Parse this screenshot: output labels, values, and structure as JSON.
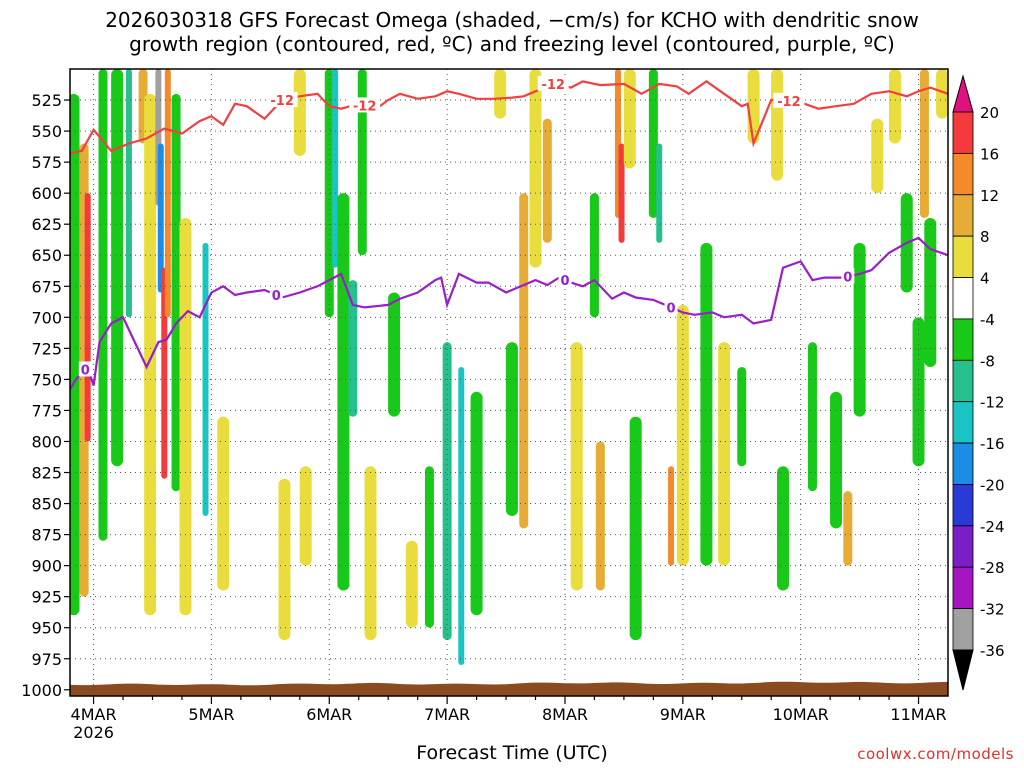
{
  "title_line1": "2026030318 GFS Forecast Omega (shaded, −cm/s) for KCHO with dendritic snow",
  "title_line2": "growth region (contoured, red, ºC) and freezing level (contoured, purple, ºC)",
  "credit": "coolwx.com/models",
  "chart_data": {
    "type": "heatmap",
    "title": "2026030318 GFS Forecast Omega (shaded, −cm/s) for KCHO with dendritic snow growth region (contoured, red, ºC) and freezing level (contoured, purple, ºC)",
    "xlabel": "Forecast Time (UTC)",
    "ylabel": "",
    "x_ticks": [
      "4MAR",
      "5MAR",
      "6MAR",
      "7MAR",
      "8MAR",
      "9MAR",
      "10MAR",
      "11MAR"
    ],
    "x_year_label": "2026",
    "y_ticks": [
      525,
      550,
      575,
      600,
      625,
      650,
      675,
      700,
      725,
      750,
      775,
      800,
      825,
      850,
      875,
      900,
      925,
      950,
      975,
      1000
    ],
    "y_range_hPa": [
      500,
      1005
    ],
    "x_range_days": [
      3.8,
      11.25
    ],
    "grid": true,
    "colorbar": {
      "ticks": [
        20,
        16,
        12,
        8,
        4,
        -4,
        -8,
        -12,
        -16,
        -20,
        -24,
        -28,
        -32,
        -36
      ],
      "bins": [
        {
          "range": "16 to 20",
          "color": "#f43a3a"
        },
        {
          "range": "12 to 16",
          "color": "#f58a2a"
        },
        {
          "range": "8 to 12",
          "color": "#e6ac36"
        },
        {
          "range": "4 to 8",
          "color": "#e8dd3c"
        },
        {
          "range": "-4 to 4",
          "color": "#ffffff"
        },
        {
          "range": "-8 to -4",
          "color": "#19c919"
        },
        {
          "range": "-12 to -8",
          "color": "#26c08e"
        },
        {
          "range": "-16 to -12",
          "color": "#1ac4c4"
        },
        {
          "range": "-20 to -16",
          "color": "#1c8de6"
        },
        {
          "range": "-24 to -20",
          "color": "#2a3ad6"
        },
        {
          "range": "-28 to -24",
          "color": "#7a1fc8"
        },
        {
          "range": "-32 to -28",
          "color": "#a516c0"
        },
        {
          "range": "-36 to -32",
          "color": "#a0a0a0"
        }
      ],
      "top_arrow_color": "#e0107c",
      "bottom_arrow_color": "#000000"
    },
    "shaded_features": [
      {
        "day": 3.83,
        "p_top": 520,
        "p_bot": 940,
        "value": -6
      },
      {
        "day": 3.92,
        "p_top": 560,
        "p_bot": 925,
        "value": 10
      },
      {
        "day": 3.95,
        "p_top": 600,
        "p_bot": 800,
        "value": 17
      },
      {
        "day": 4.08,
        "p_top": 500,
        "p_bot": 880,
        "value": -8
      },
      {
        "day": 4.2,
        "p_top": 500,
        "p_bot": 820,
        "value": -7
      },
      {
        "day": 4.3,
        "p_top": 500,
        "p_bot": 700,
        "value": -12
      },
      {
        "day": 4.42,
        "p_top": 500,
        "p_bot": 560,
        "value": 8
      },
      {
        "day": 4.48,
        "p_top": 520,
        "p_bot": 940,
        "value": 6
      },
      {
        "day": 4.55,
        "p_top": 500,
        "p_bot": 610,
        "value": -36
      },
      {
        "day": 4.57,
        "p_top": 560,
        "p_bot": 680,
        "value": -20
      },
      {
        "day": 4.6,
        "p_top": 660,
        "p_bot": 830,
        "value": 18
      },
      {
        "day": 4.63,
        "p_top": 500,
        "p_bot": 700,
        "value": 14
      },
      {
        "day": 4.7,
        "p_top": 520,
        "p_bot": 840,
        "value": -8
      },
      {
        "day": 4.78,
        "p_top": 620,
        "p_bot": 940,
        "value": 6
      },
      {
        "day": 4.95,
        "p_top": 640,
        "p_bot": 860,
        "value": -14
      },
      {
        "day": 5.1,
        "p_top": 780,
        "p_bot": 920,
        "value": 6
      },
      {
        "day": 5.62,
        "p_top": 830,
        "p_bot": 960,
        "value": 6
      },
      {
        "day": 5.75,
        "p_top": 500,
        "p_bot": 570,
        "value": 6
      },
      {
        "day": 5.8,
        "p_top": 820,
        "p_bot": 900,
        "value": 7
      },
      {
        "day": 6.0,
        "p_top": 500,
        "p_bot": 700,
        "value": -8
      },
      {
        "day": 6.05,
        "p_top": 500,
        "p_bot": 660,
        "value": -14
      },
      {
        "day": 6.12,
        "p_top": 600,
        "p_bot": 920,
        "value": -7
      },
      {
        "day": 6.2,
        "p_top": 670,
        "p_bot": 780,
        "value": -10
      },
      {
        "day": 6.28,
        "p_top": 500,
        "p_bot": 650,
        "value": -8
      },
      {
        "day": 6.35,
        "p_top": 820,
        "p_bot": 960,
        "value": 6
      },
      {
        "day": 6.55,
        "p_top": 680,
        "p_bot": 780,
        "value": -7
      },
      {
        "day": 6.7,
        "p_top": 880,
        "p_bot": 950,
        "value": 6
      },
      {
        "day": 6.85,
        "p_top": 820,
        "p_bot": 950,
        "value": -8
      },
      {
        "day": 7.0,
        "p_top": 720,
        "p_bot": 960,
        "value": -10
      },
      {
        "day": 7.12,
        "p_top": 740,
        "p_bot": 980,
        "value": -14
      },
      {
        "day": 7.25,
        "p_top": 760,
        "p_bot": 940,
        "value": -7
      },
      {
        "day": 7.45,
        "p_top": 500,
        "p_bot": 540,
        "value": 6
      },
      {
        "day": 7.55,
        "p_top": 720,
        "p_bot": 860,
        "value": -7
      },
      {
        "day": 7.65,
        "p_top": 600,
        "p_bot": 870,
        "value": 8
      },
      {
        "day": 7.75,
        "p_top": 500,
        "p_bot": 660,
        "value": 6
      },
      {
        "day": 7.85,
        "p_top": 540,
        "p_bot": 640,
        "value": 8
      },
      {
        "day": 8.1,
        "p_top": 720,
        "p_bot": 920,
        "value": 6
      },
      {
        "day": 8.25,
        "p_top": 600,
        "p_bot": 700,
        "value": -8
      },
      {
        "day": 8.3,
        "p_top": 800,
        "p_bot": 920,
        "value": 9
      },
      {
        "day": 8.45,
        "p_top": 500,
        "p_bot": 620,
        "value": 12
      },
      {
        "day": 8.48,
        "p_top": 560,
        "p_bot": 640,
        "value": 17
      },
      {
        "day": 8.55,
        "p_top": 500,
        "p_bot": 580,
        "value": 6
      },
      {
        "day": 8.6,
        "p_top": 780,
        "p_bot": 960,
        "value": -7
      },
      {
        "day": 8.75,
        "p_top": 500,
        "p_bot": 620,
        "value": -8
      },
      {
        "day": 8.8,
        "p_top": 560,
        "p_bot": 640,
        "value": -12
      },
      {
        "day": 8.9,
        "p_top": 820,
        "p_bot": 900,
        "value": 12
      },
      {
        "day": 9.0,
        "p_top": 690,
        "p_bot": 900,
        "value": 5
      },
      {
        "day": 9.2,
        "p_top": 640,
        "p_bot": 900,
        "value": -7
      },
      {
        "day": 9.35,
        "p_top": 720,
        "p_bot": 900,
        "value": 6
      },
      {
        "day": 9.5,
        "p_top": 740,
        "p_bot": 820,
        "value": -8
      },
      {
        "day": 9.6,
        "p_top": 500,
        "p_bot": 560,
        "value": 6
      },
      {
        "day": 9.8,
        "p_top": 500,
        "p_bot": 590,
        "value": 6
      },
      {
        "day": 9.85,
        "p_top": 820,
        "p_bot": 920,
        "value": -7
      },
      {
        "day": 10.1,
        "p_top": 720,
        "p_bot": 840,
        "value": -8
      },
      {
        "day": 10.3,
        "p_top": 760,
        "p_bot": 870,
        "value": -7
      },
      {
        "day": 10.4,
        "p_top": 840,
        "p_bot": 900,
        "value": 10
      },
      {
        "day": 10.5,
        "p_top": 640,
        "p_bot": 780,
        "value": -7
      },
      {
        "day": 10.65,
        "p_top": 540,
        "p_bot": 600,
        "value": 6
      },
      {
        "day": 10.8,
        "p_top": 500,
        "p_bot": 560,
        "value": 6
      },
      {
        "day": 10.9,
        "p_top": 600,
        "p_bot": 680,
        "value": -7
      },
      {
        "day": 11.0,
        "p_top": 700,
        "p_bot": 820,
        "value": -7
      },
      {
        "day": 11.05,
        "p_top": 500,
        "p_bot": 620,
        "value": 9
      },
      {
        "day": 11.1,
        "p_top": 620,
        "p_bot": 740,
        "value": -7
      },
      {
        "day": 11.2,
        "p_top": 500,
        "p_bot": 540,
        "value": 6
      }
    ],
    "series": [
      {
        "name": "-12",
        "color": "#f04040",
        "label_days": [
          5.6,
          6.3,
          7.9,
          9.9
        ],
        "x": [
          3.8,
          3.9,
          4.0,
          4.15,
          4.3,
          4.45,
          4.6,
          4.75,
          4.9,
          5.0,
          5.1,
          5.2,
          5.3,
          5.45,
          5.6,
          5.75,
          5.9,
          6.0,
          6.1,
          6.25,
          6.4,
          6.5,
          6.6,
          6.75,
          6.9,
          7.0,
          7.1,
          7.25,
          7.4,
          7.55,
          7.65,
          7.75,
          7.9,
          8.05,
          8.15,
          8.3,
          8.5,
          8.65,
          8.8,
          8.95,
          9.05,
          9.2,
          9.35,
          9.5,
          9.55,
          9.6,
          9.75,
          9.85,
          10.0,
          10.15,
          10.3,
          10.45,
          10.6,
          10.75,
          10.9,
          11.0,
          11.1,
          11.25
        ],
        "y": [
          568,
          566,
          549,
          566,
          560,
          556,
          548,
          552,
          542,
          538,
          545,
          528,
          530,
          540,
          525,
          522,
          520,
          530,
          532,
          528,
          532,
          525,
          520,
          524,
          522,
          518,
          520,
          524,
          524,
          523,
          522,
          518,
          512,
          515,
          510,
          513,
          512,
          520,
          512,
          514,
          520,
          510,
          520,
          530,
          528,
          560,
          525,
          525,
          527,
          532,
          530,
          528,
          520,
          518,
          522,
          518,
          515,
          520
        ]
      },
      {
        "name": "0",
        "color": "#9a1ec8",
        "label_days": [
          3.93,
          5.55,
          8.0,
          8.9,
          10.4
        ],
        "x": [
          3.8,
          3.85,
          3.95,
          4.0,
          4.05,
          4.15,
          4.25,
          4.35,
          4.45,
          4.55,
          4.62,
          4.7,
          4.8,
          4.9,
          5.0,
          5.1,
          5.2,
          5.3,
          5.45,
          5.6,
          5.75,
          5.9,
          6.0,
          6.1,
          6.2,
          6.3,
          6.5,
          6.6,
          6.75,
          6.9,
          6.95,
          7.0,
          7.1,
          7.25,
          7.35,
          7.5,
          7.6,
          7.75,
          7.85,
          7.95,
          8.05,
          8.15,
          8.25,
          8.4,
          8.5,
          8.6,
          8.75,
          8.85,
          9.0,
          9.1,
          9.25,
          9.35,
          9.5,
          9.6,
          9.75,
          9.85,
          10.0,
          10.1,
          10.2,
          10.35,
          10.5,
          10.6,
          10.75,
          10.9,
          11.0,
          11.1,
          11.25
        ],
        "y": [
          758,
          750,
          740,
          755,
          720,
          705,
          700,
          720,
          740,
          720,
          718,
          705,
          695,
          700,
          680,
          675,
          682,
          680,
          678,
          684,
          680,
          675,
          670,
          665,
          690,
          692,
          690,
          685,
          680,
          670,
          668,
          690,
          665,
          672,
          672,
          680,
          676,
          670,
          674,
          668,
          672,
          675,
          670,
          685,
          680,
          684,
          686,
          690,
          696,
          698,
          696,
          700,
          698,
          705,
          702,
          660,
          655,
          670,
          668,
          668,
          665,
          662,
          648,
          640,
          636,
          645,
          650
        ]
      }
    ],
    "terrain": {
      "color": "#8b4a1f",
      "surface_p_hPa_approx": 996
    }
  }
}
